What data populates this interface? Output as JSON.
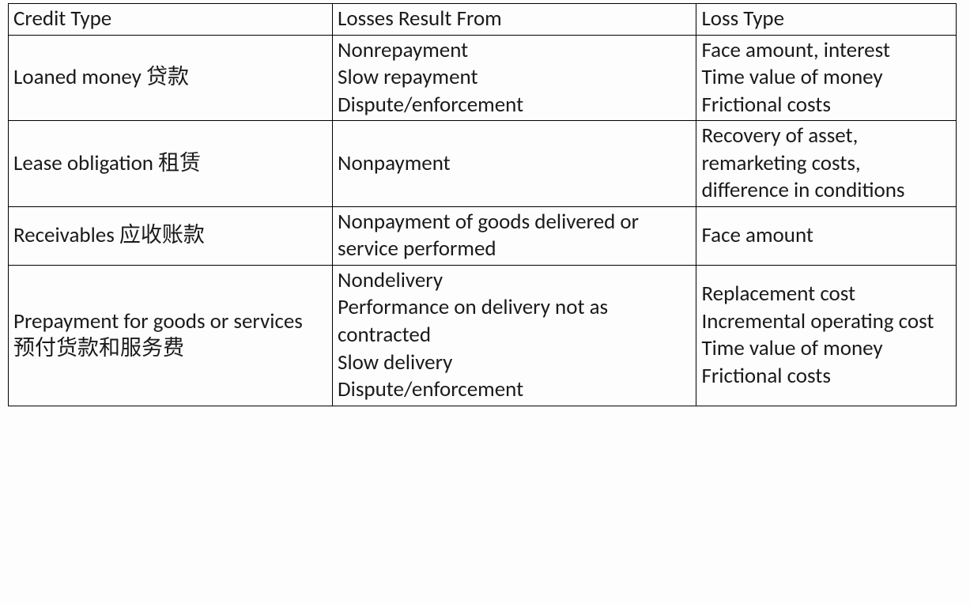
{
  "table": {
    "columns": [
      "Credit Type",
      "Losses Result From",
      "Loss Type"
    ],
    "rows": [
      {
        "credit_type": "Loaned money 贷款",
        "losses_from": "Nonrepayment\nSlow repayment\nDispute/enforcement",
        "loss_type": "Face amount, interest\nTime value of money\nFrictional costs"
      },
      {
        "credit_type": "Lease obligation 租赁",
        "losses_from": "Nonpayment",
        "loss_type": "Recovery of asset, remarketing costs, difference in conditions"
      },
      {
        "credit_type": "Receivables 应收账款",
        "losses_from": "Nonpayment of goods delivered or service performed",
        "loss_type": "Face amount"
      },
      {
        "credit_type": "Prepayment for goods or services 预付货款和服务费",
        "losses_from": "Nondelivery\nPerformance on delivery not as contracted\nSlow delivery\nDispute/enforcement",
        "loss_type": "Replacement cost\nIncremental operating cost\nTime value of money\nFrictional costs"
      }
    ]
  }
}
